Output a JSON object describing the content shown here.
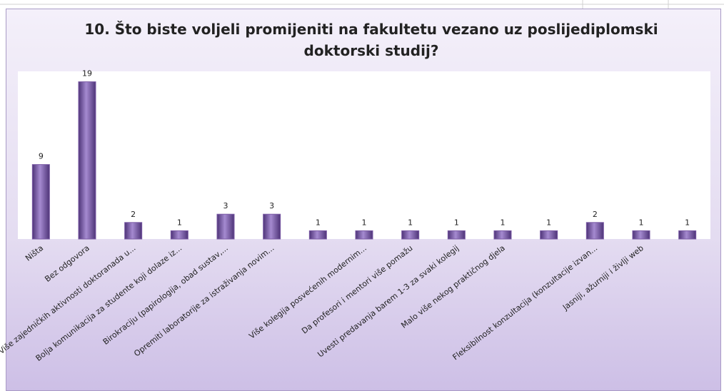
{
  "chart_data": {
    "type": "bar",
    "title": "10. Što biste voljeli promijeniti na fakultetu vezano uz poslijediplomski doktorski studij?",
    "categories": [
      "Ništa",
      "Bez odgovora",
      "Više zajedničkih aktivnosti doktoranada u...",
      "Bolja komunikacija za studente koji dolaze iz...",
      "Birokraciju (papirologija, obad sustav,...",
      "Opremiti laboratorije za istraživanja novim...",
      null,
      "Više kolegija posvećenih modernim...",
      "Da profesori i mentori više pomažu",
      "Uvesti predavanja barem 1-3 za svaki kolegij",
      "Malo više nekog praktičnog djela",
      null,
      "Fleksibilnost konzultacija (konzultacije izvan...",
      "Jasniji, ažurniji i življi web",
      null
    ],
    "values": [
      9,
      19,
      2,
      1,
      3,
      3,
      1,
      1,
      1,
      1,
      1,
      1,
      2,
      1,
      1
    ],
    "color": "#7b5ba6",
    "ylim": [
      0,
      20
    ]
  }
}
